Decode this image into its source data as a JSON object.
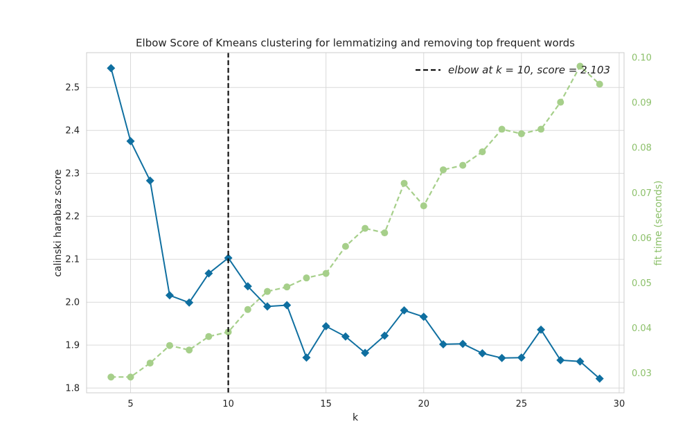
{
  "chart_data": {
    "type": "line",
    "title": "Elbow Score of Kmeans clustering for lemmatizing and removing top frequent words",
    "xlabel": "k",
    "ylabel": "calinski harabaz score",
    "y2label": "fit time (seconds)",
    "xlim": [
      2.75,
      30.25
    ],
    "ylim": [
      1.789,
      2.581
    ],
    "y2lim": [
      0.0256,
      0.1011
    ],
    "xticks": [
      5,
      10,
      15,
      20,
      25,
      30
    ],
    "yticks": [
      1.8,
      1.9,
      2.0,
      2.1,
      2.2,
      2.3,
      2.4,
      2.5
    ],
    "y2ticks": [
      0.03,
      0.04,
      0.05,
      0.06,
      0.07,
      0.08,
      0.09,
      0.1
    ],
    "ytick_labels": [
      "1.8",
      "1.9",
      "2.0",
      "2.1",
      "2.2",
      "2.3",
      "2.4",
      "2.5"
    ],
    "y2tick_labels": [
      "0.03",
      "0.04",
      "0.05",
      "0.06",
      "0.07",
      "0.08",
      "0.09",
      "0.10"
    ],
    "xtick_labels": [
      "5",
      "10",
      "15",
      "20",
      "25",
      "30"
    ],
    "grid": true,
    "x": [
      4,
      5,
      6,
      7,
      8,
      9,
      10,
      11,
      12,
      13,
      14,
      15,
      16,
      17,
      18,
      19,
      20,
      21,
      22,
      23,
      24,
      25,
      26,
      27,
      28,
      29
    ],
    "series": [
      {
        "axis": "left",
        "color": "#0f6fa0",
        "style": "solid",
        "marker": "diamond",
        "values": [
          2.545,
          2.375,
          2.283,
          2.016,
          1.999,
          2.067,
          2.103,
          2.037,
          1.99,
          1.993,
          1.871,
          1.944,
          1.92,
          1.882,
          1.922,
          1.981,
          1.966,
          1.902,
          1.903,
          1.881,
          1.87,
          1.871,
          1.936,
          1.865,
          1.862,
          1.822
        ]
      },
      {
        "axis": "right",
        "color": "#a6cf8a",
        "style": "dashed",
        "marker": "circle",
        "values": [
          0.0291,
          0.0291,
          0.0322,
          0.0361,
          0.0351,
          0.0381,
          0.0391,
          0.0441,
          0.0481,
          0.0491,
          0.0511,
          0.0521,
          0.0581,
          0.0621,
          0.0611,
          0.0721,
          0.0671,
          0.0751,
          0.0761,
          0.0791,
          0.0841,
          0.0831,
          0.0841,
          0.0901,
          0.0981,
          0.0941
        ]
      }
    ],
    "elbow": {
      "k": 10,
      "score": 2.103,
      "legend_text": "elbow at k = 10, score = 2.103"
    },
    "legend": {
      "position": "top-right"
    }
  }
}
